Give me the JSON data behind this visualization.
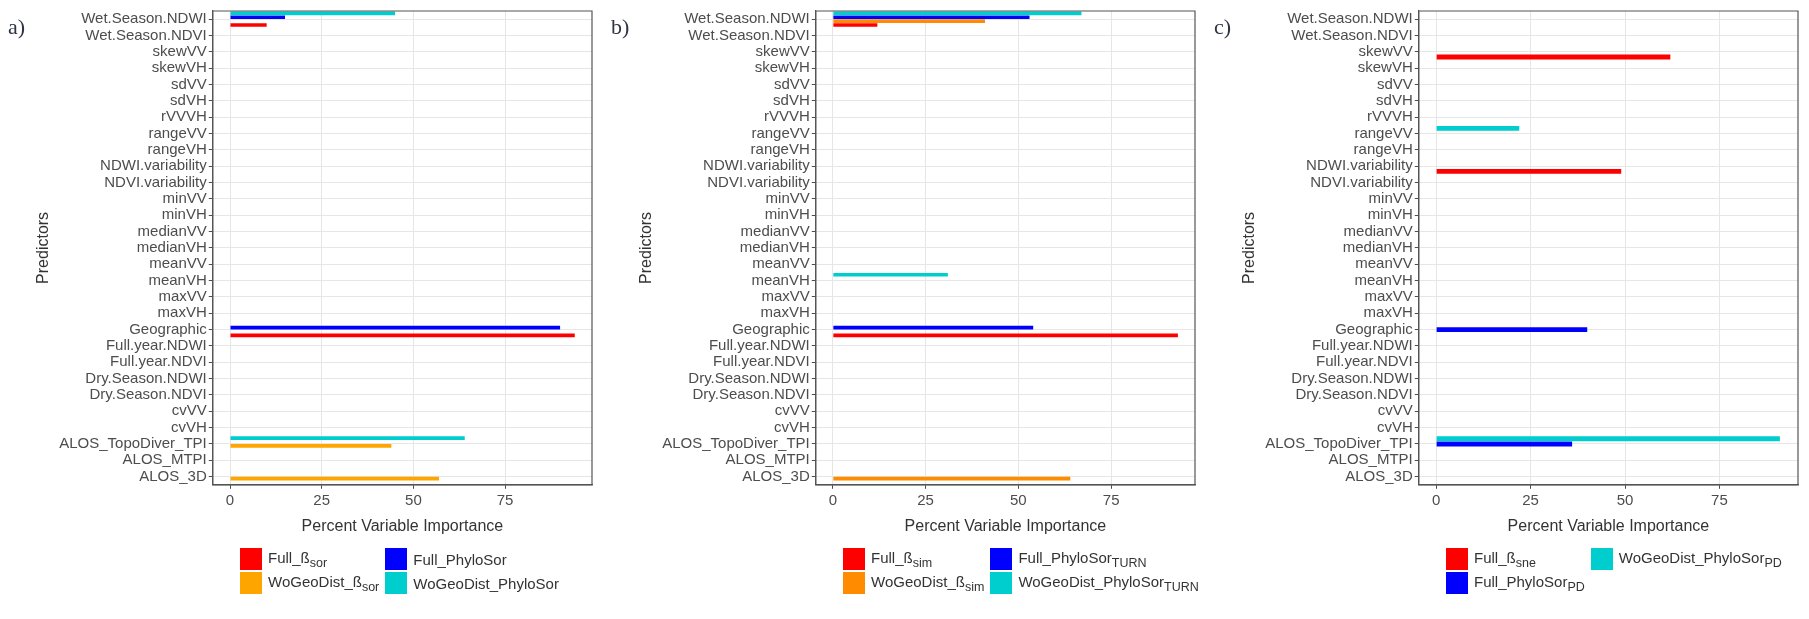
{
  "chart_data": [
    {
      "type": "bar",
      "orientation": "horizontal",
      "title": "a)",
      "xlabel": "Percent Variable Importance",
      "ylabel": "Predictors",
      "categories": [
        "Wet.Season.NDWI",
        "Wet.Season.NDVI",
        "skewVV",
        "skewVH",
        "sdVV",
        "sdVH",
        "rVVVH",
        "rangeVV",
        "rangeVH",
        "NDWI.variability",
        "NDVI.variability",
        "minVV",
        "minVH",
        "medianVV",
        "medianVH",
        "meanVV",
        "meanVH",
        "maxVV",
        "maxVH",
        "Geographic",
        "Full.year.NDWI",
        "Full.year.NDVI",
        "Dry.Season.NDWI",
        "Dry.Season.NDVI",
        "cvVV",
        "cvVH",
        "ALOS_TopoDiver_TPI",
        "ALOS_MTPI",
        "ALOS_3D"
      ],
      "series": [
        {
          "name": "Full_ß$_{sor}$",
          "color": "#ff0000",
          "values": [
            10,
            null,
            null,
            null,
            null,
            null,
            null,
            null,
            null,
            null,
            null,
            null,
            null,
            null,
            null,
            null,
            null,
            null,
            null,
            94,
            null,
            null,
            null,
            null,
            null,
            null,
            null,
            null,
            null
          ]
        },
        {
          "name": "WoGeoDist_ß$_{sor}$",
          "color": "#ffa500",
          "values": [
            null,
            null,
            null,
            null,
            null,
            null,
            null,
            null,
            null,
            null,
            null,
            null,
            null,
            null,
            null,
            null,
            null,
            null,
            null,
            null,
            null,
            null,
            null,
            null,
            null,
            null,
            44,
            null,
            57
          ]
        },
        {
          "name": "Full_PhyloSor",
          "color": "#0000ff",
          "values": [
            15,
            null,
            null,
            null,
            null,
            null,
            null,
            null,
            null,
            null,
            null,
            null,
            null,
            null,
            null,
            null,
            null,
            null,
            null,
            90,
            null,
            null,
            null,
            null,
            null,
            null,
            null,
            null,
            null
          ]
        },
        {
          "name": "WoGeoDist_PhyloSor",
          "color": "#00cdcd",
          "values": [
            45,
            null,
            null,
            null,
            null,
            null,
            null,
            null,
            null,
            null,
            null,
            null,
            null,
            null,
            null,
            null,
            null,
            null,
            null,
            null,
            null,
            null,
            null,
            null,
            null,
            null,
            64,
            null,
            null
          ]
        }
      ],
      "xlim": [
        -4.7,
        98.7
      ],
      "xticks": [
        0,
        25,
        50,
        75
      ],
      "grid": true,
      "legend": "bottom"
    },
    {
      "type": "bar",
      "orientation": "horizontal",
      "title": "b)",
      "xlabel": "Percent Variable Importance",
      "ylabel": "Predictors",
      "categories": [
        "Wet.Season.NDWI",
        "Wet.Season.NDVI",
        "skewVV",
        "skewVH",
        "sdVV",
        "sdVH",
        "rVVVH",
        "rangeVV",
        "rangeVH",
        "NDWI.variability",
        "NDVI.variability",
        "minVV",
        "minVH",
        "medianVV",
        "medianVH",
        "meanVV",
        "meanVH",
        "maxVV",
        "maxVH",
        "Geographic",
        "Full.year.NDWI",
        "Full.year.NDVI",
        "Dry.Season.NDWI",
        "Dry.Season.NDVI",
        "cvVV",
        "cvVH",
        "ALOS_TopoDiver_TPI",
        "ALOS_MTPI",
        "ALOS_3D"
      ],
      "series": [
        {
          "name": "Full_ß$_{sim}$",
          "color": "#ff0000",
          "values": [
            12,
            null,
            null,
            null,
            null,
            null,
            null,
            null,
            null,
            null,
            null,
            null,
            null,
            null,
            null,
            null,
            null,
            null,
            null,
            93,
            null,
            null,
            null,
            null,
            null,
            null,
            null,
            null,
            null
          ]
        },
        {
          "name": "WoGeoDist_ß$_{sim}$",
          "color": "#ff8c00",
          "values": [
            41,
            null,
            null,
            null,
            null,
            null,
            null,
            null,
            null,
            null,
            null,
            null,
            null,
            null,
            null,
            null,
            null,
            null,
            null,
            null,
            null,
            null,
            null,
            null,
            null,
            null,
            null,
            null,
            64
          ]
        },
        {
          "name": "Full_PhyloSor$_{TURN}$",
          "color": "#0000ff",
          "values": [
            53,
            null,
            null,
            null,
            null,
            null,
            null,
            null,
            null,
            null,
            null,
            null,
            null,
            null,
            null,
            null,
            null,
            null,
            null,
            54,
            null,
            null,
            null,
            null,
            null,
            null,
            null,
            null,
            null
          ]
        },
        {
          "name": "WoGeoDist_PhyloSor$_{TURN}$",
          "color": "#00cdcd",
          "values": [
            67,
            null,
            null,
            null,
            null,
            null,
            null,
            null,
            null,
            null,
            null,
            null,
            null,
            null,
            null,
            null,
            31,
            null,
            null,
            null,
            null,
            null,
            null,
            null,
            null,
            null,
            null,
            null,
            null
          ]
        }
      ],
      "xlim": [
        -4.6,
        97.6
      ],
      "xticks": [
        0,
        25,
        50,
        75
      ],
      "grid": true,
      "legend": "bottom"
    },
    {
      "type": "bar",
      "orientation": "horizontal",
      "title": "c)",
      "xlabel": "Percent Variable Importance",
      "ylabel": "Predictors",
      "categories": [
        "Wet.Season.NDWI",
        "Wet.Season.NDVI",
        "skewVV",
        "skewVH",
        "sdVV",
        "sdVH",
        "rVVVH",
        "rangeVV",
        "rangeVH",
        "NDWI.variability",
        "NDVI.variability",
        "minVV",
        "minVH",
        "medianVV",
        "medianVH",
        "meanVV",
        "meanVH",
        "maxVV",
        "maxVH",
        "Geographic",
        "Full.year.NDWI",
        "Full.year.NDVI",
        "Dry.Season.NDWI",
        "Dry.Season.NDVI",
        "cvVV",
        "cvVH",
        "ALOS_TopoDiver_TPI",
        "ALOS_MTPI",
        "ALOS_3D"
      ],
      "series": [
        {
          "name": "Full_ß$_{sne}$",
          "color": "#ff0000",
          "values": [
            null,
            null,
            62,
            null,
            null,
            null,
            null,
            null,
            null,
            49,
            null,
            null,
            null,
            null,
            null,
            null,
            null,
            null,
            null,
            null,
            null,
            null,
            null,
            null,
            null,
            null,
            null,
            null,
            null
          ]
        },
        {
          "name": "Full_PhyloSor$_{PD}$",
          "color": "#0000ff",
          "values": [
            null,
            null,
            null,
            null,
            null,
            null,
            null,
            null,
            null,
            null,
            null,
            null,
            null,
            null,
            null,
            null,
            null,
            null,
            null,
            40,
            null,
            null,
            null,
            null,
            null,
            null,
            36,
            null,
            null
          ]
        },
        {
          "name": "WoGeoDist_PhyloSor$_{PD}$",
          "color": "#00cdcd",
          "values": [
            null,
            null,
            null,
            null,
            null,
            null,
            null,
            22,
            null,
            null,
            null,
            null,
            null,
            null,
            null,
            null,
            null,
            null,
            null,
            null,
            null,
            null,
            null,
            null,
            null,
            null,
            91,
            null,
            null
          ]
        }
      ],
      "xlim": [
        -4.6,
        95.8
      ],
      "xticks": [
        0,
        25,
        50,
        75
      ],
      "grid": true,
      "legend": "bottom"
    }
  ]
}
